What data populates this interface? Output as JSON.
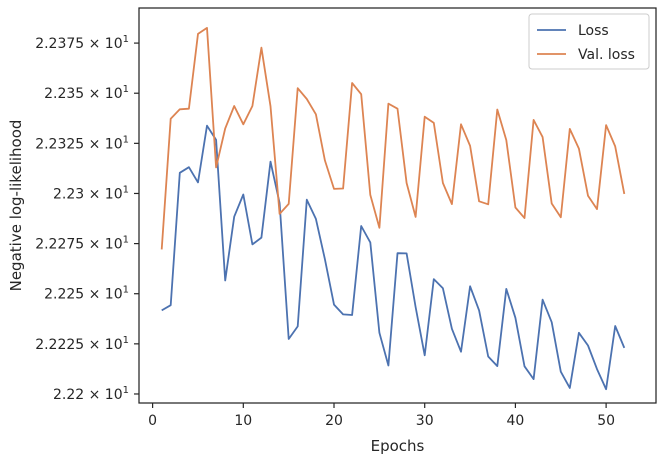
{
  "chart_data": {
    "type": "line",
    "title": "",
    "xlabel": "Epochs",
    "ylabel": "Negative log-likelihood",
    "xlim": [
      -1.5,
      55.5
    ],
    "ylim": [
      22.1955,
      22.3925
    ],
    "x_ticks": [
      0,
      10,
      20,
      30,
      40,
      50
    ],
    "y_ticks": [
      {
        "value": 22.2,
        "mantissa": "2.22",
        "times": "×",
        "base": "10",
        "exp": "1"
      },
      {
        "value": 22.225,
        "mantissa": "2.2225",
        "times": "×",
        "base": "10",
        "exp": "1"
      },
      {
        "value": 22.25,
        "mantissa": "2.225",
        "times": "×",
        "base": "10",
        "exp": "1"
      },
      {
        "value": 22.275,
        "mantissa": "2.2275",
        "times": "×",
        "base": "10",
        "exp": "1"
      },
      {
        "value": 22.3,
        "mantissa": "2.23",
        "times": "×",
        "base": "10",
        "exp": "1"
      },
      {
        "value": 22.325,
        "mantissa": "2.2325",
        "times": "×",
        "base": "10",
        "exp": "1"
      },
      {
        "value": 22.35,
        "mantissa": "2.235",
        "times": "×",
        "base": "10",
        "exp": "1"
      },
      {
        "value": 22.375,
        "mantissa": "2.2375",
        "times": "×",
        "base": "10",
        "exp": "1"
      }
    ],
    "legend_position": "top-right",
    "grid": false,
    "x": [
      1,
      2,
      3,
      4,
      5,
      6,
      7,
      8,
      9,
      10,
      11,
      12,
      13,
      14,
      15,
      16,
      17,
      18,
      19,
      20,
      21,
      22,
      23,
      24,
      25,
      26,
      27,
      28,
      29,
      30,
      31,
      32,
      33,
      34,
      35,
      36,
      37,
      38,
      39,
      40,
      41,
      42,
      43,
      44,
      45,
      46,
      47,
      48,
      49,
      50,
      51,
      52
    ],
    "series": [
      {
        "name": "Loss",
        "color": "#4c72b0",
        "values": [
          22.2417,
          22.2443,
          22.3103,
          22.3131,
          22.3055,
          22.3338,
          22.3267,
          22.2566,
          22.2884,
          22.2995,
          22.2746,
          22.278,
          22.3159,
          22.2952,
          22.2274,
          22.2337,
          22.2969,
          22.2873,
          22.2672,
          22.2446,
          22.2397,
          22.2394,
          22.2838,
          22.2756,
          22.2305,
          22.2142,
          22.2702,
          22.2701,
          22.2434,
          22.2193,
          22.2573,
          22.2527,
          22.2325,
          22.2211,
          22.2537,
          22.2417,
          22.2187,
          22.2139,
          22.2524,
          22.238,
          22.2138,
          22.2074,
          22.247,
          22.2358,
          22.2111,
          22.203,
          22.2305,
          22.2242,
          22.2124,
          22.2024,
          22.2339,
          22.223
        ]
      },
      {
        "name": "Val. loss",
        "color": "#dd8452",
        "values": [
          22.2721,
          22.3373,
          22.342,
          22.3423,
          22.3796,
          22.3826,
          22.313,
          22.3324,
          22.3436,
          22.3345,
          22.3436,
          22.3727,
          22.3435,
          22.2898,
          22.2948,
          22.3525,
          22.3471,
          22.3395,
          22.3165,
          22.3023,
          22.3025,
          22.3551,
          22.3495,
          22.2993,
          22.2829,
          22.3448,
          22.3423,
          22.3052,
          22.2883,
          22.3383,
          22.3352,
          22.3052,
          22.2947,
          22.3345,
          22.3237,
          22.2961,
          22.2946,
          22.3419,
          22.3266,
          22.293,
          22.2877,
          22.3367,
          22.3281,
          22.295,
          22.2881,
          22.3322,
          22.3224,
          22.2989,
          22.2922,
          22.3341,
          22.3235,
          22.2998
        ]
      }
    ]
  }
}
